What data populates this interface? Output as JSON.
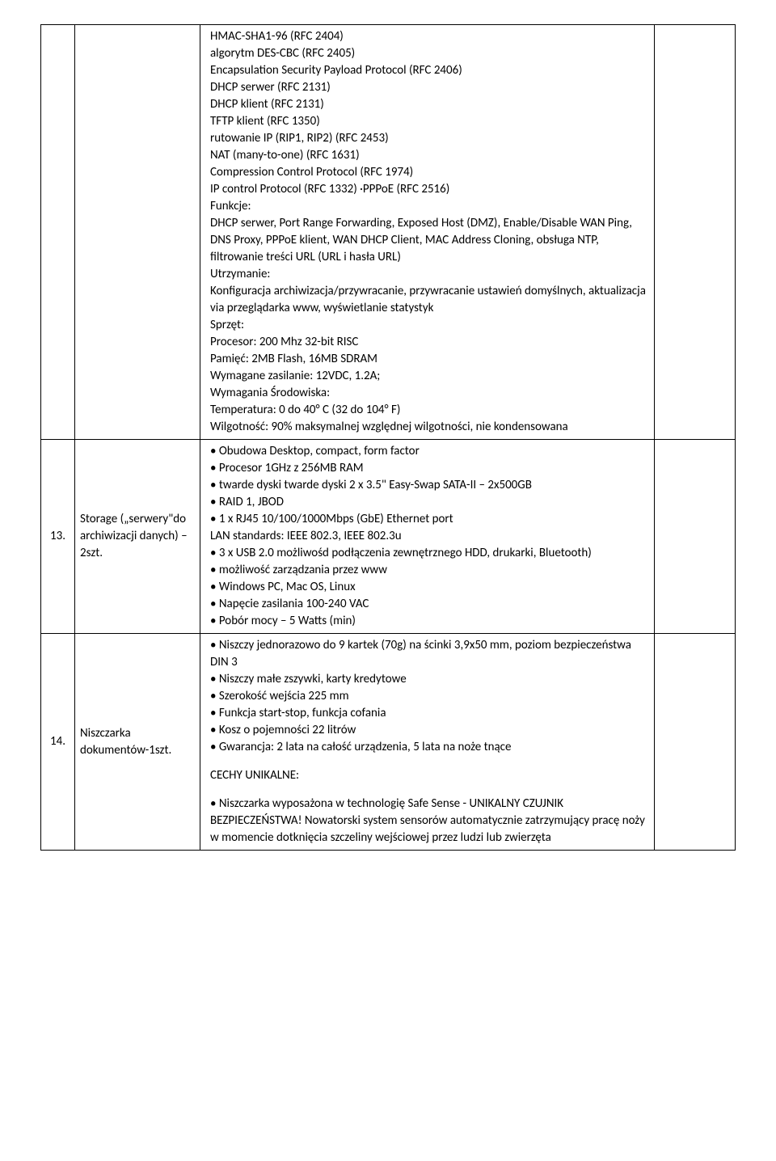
{
  "rows": [
    {
      "num": "",
      "name": "",
      "desc": [
        "HMAC-SHA1-96 (RFC 2404)",
        "algorytm DES-CBC (RFC 2405)",
        "Encapsulation Security Payload Protocol (RFC 2406)",
        "DHCP serwer (RFC 2131)",
        "DHCP klient (RFC 2131)",
        "TFTP klient (RFC 1350)",
        "rutowanie IP (RIP1, RIP2) (RFC 2453)",
        "NAT (many-to-one) (RFC 1631)",
        "Compression Control Protocol (RFC 1974)",
        "IP control Protocol (RFC 1332) ·PPPoE (RFC 2516)",
        "Funkcje:",
        "DHCP serwer, Port Range Forwarding, Exposed Host (DMZ), Enable/Disable WAN Ping, DNS Proxy, PPPoE klient, WAN DHCP Client, MAC Address Cloning, obsługa NTP, filtrowanie treści URL (URL i hasła URL)",
        "Utrzymanie:",
        "Konfiguracja archiwizacja/przywracanie, przywracanie ustawień domyślnych, aktualizacja via przeglądarka www, wyświetlanie statystyk",
        "Sprzęt:",
        "Procesor: 200 Mhz 32-bit RISC",
        "Pamięć: 2MB Flash, 16MB SDRAM",
        "Wymagane zasilanie: 12VDC, 1.2A;",
        "Wymagania Środowiska:",
        "Temperatura: 0 do 40° C (32 do 104° F)",
        "Wilgotność: 90% maksymalnej względnej wilgotności, nie kondensowana"
      ]
    },
    {
      "num": "13.",
      "name": "Storage („serwery\"do archiwizacji danych) – 2szt.",
      "desc": [
        "• Obudowa Desktop, compact, form factor",
        "• Procesor 1GHz z 256MB RAM",
        "• twarde dyski twarde dyski 2 x 3.5\" Easy-Swap SATA-II – 2x500GB",
        "• RAID 1, JBOD",
        "• 1 x RJ45 10/100/1000Mbps (GbE) Ethernet port",
        "LAN standards: IEEE 802.3, IEEE 802.3u",
        "• 3 x USB 2.0 możliwośd podłączenia zewnętrznego HDD, drukarki, Bluetooth)",
        "• możliwość zarządzania przez www",
        "• Windows PC, Mac OS, Linux",
        "• Napęcie zasilania 100-240 VAC",
        "• Pobór mocy – 5 Watts (min)"
      ]
    },
    {
      "num": "14.",
      "name": "Niszczarka dokumentów-1szt.",
      "desc_groups": [
        [
          "• Niszczy jednorazowo do 9 kartek (70g) na ścinki 3,9x50 mm, poziom bezpieczeństwa DIN 3",
          "• Niszczy małe zszywki, karty kredytowe",
          "• Szerokość wejścia 225 mm",
          "• Funkcja start-stop, funkcja cofania",
          "• Kosz o pojemności 22 litrów",
          "• Gwarancja: 2 lata na całość urządzenia, 5 lata na noże tnące"
        ],
        [
          "CECHY UNIKALNE:"
        ],
        [
          "• Niszczarka wyposażona w technologię Safe Sense - UNIKALNY CZUJNIK BEZPIECZEŃSTWA! Nowatorski system sensorów automatycznie zatrzymujący pracę noży w momencie dotknięcia szczeliny wejściowej przez ludzi lub zwierzęta"
        ]
      ]
    }
  ]
}
